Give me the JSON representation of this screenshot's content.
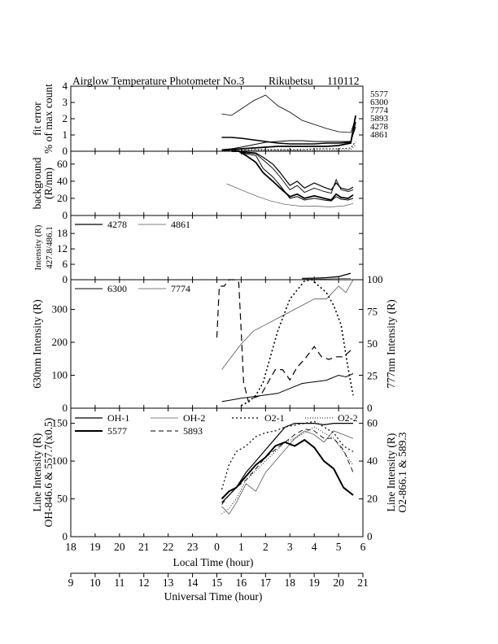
{
  "title": {
    "instrument": "Airglow Temperature Photometer No.3",
    "station": "Rikubetsu",
    "date": "110112"
  },
  "chart_data": [
    {
      "type": "line",
      "panel": "fit-error",
      "ylabel": [
        "fit error",
        "% of max count"
      ],
      "ylim": [
        0,
        4
      ],
      "yticks": [
        "0",
        "1",
        "2",
        "3",
        "4"
      ],
      "right_labels": [
        "5577",
        "6300",
        "7774",
        "5893",
        "4278",
        "4861"
      ],
      "series": [
        {
          "name": "5577",
          "x": [
            0.2,
            0.6,
            1.0,
            1.5,
            2.0,
            2.5,
            3.0,
            3.5,
            4.0,
            4.5,
            5.0,
            5.5,
            5.7
          ],
          "values": [
            0.05,
            0.1,
            0.15,
            0.2,
            0.25,
            0.3,
            0.3,
            0.3,
            0.3,
            0.3,
            0.35,
            0.5,
            2.2
          ]
        },
        {
          "name": "6300",
          "x": [
            0.2,
            0.6,
            1.0,
            1.5,
            2.0,
            2.5,
            3.0,
            3.5,
            4.0,
            4.5,
            5.0,
            5.5,
            5.7
          ],
          "values": [
            2.3,
            2.2,
            2.6,
            3.1,
            3.45,
            2.8,
            2.4,
            1.9,
            1.65,
            1.4,
            1.2,
            1.15,
            2.0
          ]
        },
        {
          "name": "7774",
          "x": [
            0.2,
            0.6,
            1.0,
            1.5,
            2.0,
            2.5,
            3.0,
            3.5,
            4.0,
            4.5,
            5.0,
            5.5,
            5.7
          ],
          "values": [
            0.85,
            0.85,
            0.8,
            0.7,
            0.6,
            0.5,
            0.45,
            0.45,
            0.45,
            0.5,
            0.5,
            0.55,
            1.8
          ]
        },
        {
          "name": "5893",
          "x": [
            0.2,
            0.6,
            1.0,
            1.5,
            2.0,
            2.5,
            3.0,
            3.5,
            4.0,
            4.5,
            5.0,
            5.5,
            5.7
          ],
          "values": [
            0.1,
            0.15,
            0.25,
            0.4,
            0.55,
            0.6,
            0.65,
            0.65,
            0.6,
            0.6,
            0.6,
            0.6,
            1.5
          ]
        },
        {
          "name": "4278",
          "x": [
            0.2,
            0.6,
            1.0,
            1.5,
            2.0,
            2.5,
            3.0,
            3.5,
            4.0,
            4.5,
            5.0,
            5.5,
            5.7
          ],
          "values": [
            0.05,
            0.05,
            0.05,
            0.1,
            0.1,
            0.1,
            0.1,
            0.1,
            0.15,
            0.15,
            0.15,
            0.2,
            0.6
          ]
        },
        {
          "name": "4861",
          "x": [
            0.2,
            0.6,
            1.0,
            1.5,
            2.0,
            2.5,
            3.0,
            3.5,
            4.0,
            4.5,
            5.0,
            5.5,
            5.7
          ],
          "values": [
            0.05,
            0.05,
            0.05,
            0.05,
            0.05,
            0.05,
            0.05,
            0.05,
            0.05,
            0.05,
            0.05,
            0.1,
            0.4
          ]
        }
      ]
    },
    {
      "type": "line",
      "panel": "background",
      "ylabel": [
        "background",
        "(R/nm)"
      ],
      "ylim": [
        0,
        75
      ],
      "yticks": [
        "0",
        "20",
        "40",
        "60"
      ],
      "series": [
        {
          "x": [
            0.6,
            0.9,
            1.2,
            1.6,
            1.9,
            2.3,
            2.6,
            3.0,
            3.3,
            3.6,
            4.0,
            4.4,
            4.7,
            4.9,
            5.1,
            5.4,
            5.6
          ],
          "values": [
            75,
            75,
            72,
            70,
            55,
            45,
            35,
            20,
            22,
            18,
            20,
            18,
            17,
            22,
            19,
            18,
            20
          ]
        },
        {
          "x": [
            0.6,
            0.9,
            1.2,
            1.6,
            1.9,
            2.3,
            2.6,
            3.0,
            3.3,
            3.6,
            4.0,
            4.4,
            4.7,
            4.9,
            5.1,
            5.4,
            5.6
          ],
          "values": [
            75,
            75,
            70,
            62,
            50,
            40,
            32,
            22,
            25,
            20,
            23,
            20,
            18,
            25,
            21,
            20,
            24
          ]
        },
        {
          "x": [
            0.6,
            0.9,
            1.2,
            1.6,
            1.9,
            2.3,
            2.6,
            3.0,
            3.3,
            3.6,
            4.0,
            4.4,
            4.7,
            4.9,
            5.1,
            5.4,
            5.6
          ],
          "values": [
            75,
            75,
            73,
            72,
            65,
            55,
            45,
            30,
            35,
            27,
            32,
            28,
            26,
            42,
            30,
            28,
            30
          ]
        },
        {
          "x": [
            0.6,
            0.9,
            1.2,
            1.6,
            1.9,
            2.3,
            2.6,
            3.0,
            3.3,
            3.6,
            4.0,
            4.4,
            4.7,
            4.9,
            5.1,
            5.4,
            5.6
          ],
          "values": [
            75,
            75,
            74,
            73,
            68,
            60,
            50,
            35,
            40,
            32,
            38,
            33,
            30,
            38,
            32,
            30,
            33
          ]
        },
        {
          "x": [
            0.4,
            1.0,
            1.6,
            2.2,
            2.8,
            3.4,
            4.0,
            4.6,
            5.2,
            5.6
          ],
          "values": [
            37,
            30,
            23,
            17,
            13,
            11,
            11,
            10,
            11,
            14
          ]
        }
      ]
    },
    {
      "type": "line",
      "panel": "blue-lines",
      "ylabel": [
        "Intensity (R)",
        "427.8/486.1"
      ],
      "ylim": [
        0,
        25
      ],
      "yticks": [
        "0",
        "6",
        "12",
        "18"
      ],
      "legend": [
        "4278",
        "4861"
      ],
      "series": [
        {
          "name": "4278",
          "x": [
            3.5,
            4.0,
            4.5,
            5.0,
            5.5
          ],
          "values": [
            0.5,
            0.6,
            0.8,
            1.2,
            2.5
          ]
        },
        {
          "name": "4861",
          "x": [
            3.5,
            4.0,
            4.5,
            5.0,
            5.5
          ],
          "values": [
            0.3,
            0.3,
            0.3,
            0.4,
            0.5
          ]
        }
      ]
    },
    {
      "type": "line",
      "panel": "red-lines",
      "ylabel": "630nm Intensity (R)",
      "ylabel_right": "777nm Intensity (R)",
      "ylim": [
        0,
        390
      ],
      "yticks": [
        "0",
        "100",
        "200",
        "300"
      ],
      "ylim_right": [
        0,
        100
      ],
      "yticks_right": [
        "0",
        "25",
        "50",
        "75",
        "100"
      ],
      "legend": [
        "6300",
        "7774"
      ],
      "series": [
        {
          "name": "6300",
          "x": [
            0.2,
            0.6,
            1.0,
            1.5,
            2.0,
            2.5,
            3.0,
            3.5,
            4.0,
            4.5,
            5.0,
            5.3,
            5.6
          ],
          "values": [
            20,
            25,
            30,
            35,
            40,
            45,
            60,
            75,
            80,
            85,
            100,
            95,
            105
          ]
        },
        {
          "name": "7774",
          "x": [
            0.2,
            0.6,
            1.0,
            1.5,
            2.0,
            2.5,
            3.0,
            3.5,
            4.0,
            4.5,
            5.0,
            5.3,
            5.6
          ],
          "values": [
            30,
            40,
            50,
            60,
            65,
            70,
            75,
            80,
            85,
            85,
            95,
            90,
            100
          ]
        },
        {
          "name": "dashed",
          "x": [
            0.0,
            0.1,
            0.3,
            0.5,
            0.7,
            0.9,
            1.0,
            1.1,
            1.3,
            1.5,
            1.8,
            2.1,
            2.4,
            2.7,
            3.0,
            3.3,
            3.6,
            4.0,
            4.3,
            4.6,
            4.9,
            5.2,
            5.5
          ],
          "values": [
            55,
            95,
            95,
            100,
            100,
            98,
            60,
            20,
            5,
            8,
            10,
            20,
            30,
            30,
            22,
            32,
            38,
            48,
            40,
            38,
            40,
            40,
            45
          ]
        },
        {
          "name": "dotted",
          "x": [
            1.0,
            1.3,
            1.6,
            1.9,
            2.2,
            2.5,
            2.8,
            3.0,
            3.3,
            3.6,
            3.9,
            4.2,
            4.5,
            4.8,
            5.1,
            5.4,
            5.6
          ],
          "values": [
            2,
            5,
            10,
            20,
            40,
            60,
            75,
            85,
            92,
            99,
            100,
            95,
            90,
            80,
            65,
            30,
            10
          ]
        }
      ]
    },
    {
      "type": "line",
      "panel": "line-intensity",
      "ylabel": [
        "Line Intensity (R)",
        "OH-846.6 & 557.7(x0.5)"
      ],
      "ylabel_right": [
        "Line Intensity (R)",
        "O2-866.1 & 589.3"
      ],
      "ylim": [
        0,
        170
      ],
      "yticks": [
        "0",
        "50",
        "100",
        "150"
      ],
      "ylim_right": [
        0,
        68
      ],
      "yticks_right": [
        "0",
        "20",
        "40",
        "60"
      ],
      "legend": [
        "OH-1",
        "OH-2",
        "O2-1",
        "O2-2",
        "5577",
        "5893"
      ],
      "series": [
        {
          "name": "OH-1",
          "x": [
            0.2,
            0.5,
            0.8,
            1.2,
            1.6,
            2.0,
            2.4,
            2.8,
            3.2,
            3.6,
            4.0,
            4.4,
            4.8,
            5.2,
            5.6
          ],
          "values": [
            45,
            55,
            65,
            85,
            100,
            115,
            130,
            145,
            150,
            150,
            150,
            148,
            150,
            150,
            150
          ]
        },
        {
          "name": "OH-2",
          "x": [
            0.2,
            0.5,
            0.8,
            1.2,
            1.6,
            2.0,
            2.4,
            2.8,
            3.2,
            3.6,
            4.0,
            4.4,
            4.8,
            5.2,
            5.6
          ],
          "values": [
            40,
            30,
            45,
            70,
            60,
            85,
            100,
            115,
            130,
            140,
            135,
            125,
            140,
            135,
            130
          ]
        },
        {
          "name": "O2-1",
          "x": [
            0.2,
            0.5,
            0.8,
            1.2,
            1.6,
            2.0,
            2.4,
            2.8,
            3.2,
            3.6,
            4.0,
            4.4,
            4.8,
            5.2,
            5.6
          ],
          "values": [
            25,
            38,
            45,
            48,
            53,
            55,
            56,
            58,
            59,
            60,
            61,
            58,
            55,
            48,
            45
          ]
        },
        {
          "name": "O2-2",
          "x": [
            0.2,
            0.5,
            0.8,
            1.2,
            1.6,
            2.0,
            2.4,
            2.8,
            3.2,
            3.6,
            4.0,
            4.4,
            4.8,
            5.2,
            5.6
          ],
          "values": [
            12,
            15,
            20,
            30,
            35,
            40,
            45,
            50,
            52,
            55,
            58,
            55,
            52,
            45,
            38
          ]
        },
        {
          "name": "5577",
          "x": [
            0.2,
            0.5,
            0.8,
            1.2,
            1.6,
            2.0,
            2.4,
            2.8,
            3.2,
            3.6,
            4.0,
            4.4,
            4.8,
            5.2,
            5.6
          ],
          "values": [
            50,
            60,
            65,
            80,
            95,
            105,
            120,
            125,
            120,
            128,
            118,
            100,
            90,
            65,
            55
          ]
        },
        {
          "name": "5893",
          "x": [
            0.2,
            0.5,
            0.8,
            1.2,
            1.6,
            2.0,
            2.4,
            2.8,
            3.2,
            3.6,
            4.0,
            4.4,
            4.8,
            5.2,
            5.6
          ],
          "values": [
            17,
            22,
            26,
            30,
            36,
            42,
            46,
            50,
            54,
            57,
            56,
            52,
            52,
            46,
            34
          ]
        }
      ]
    }
  ],
  "xaxis": {
    "local": {
      "label": "Local Time (hour)",
      "ticks": [
        "18",
        "19",
        "20",
        "21",
        "22",
        "23",
        "0",
        "1",
        "2",
        "3",
        "4",
        "5",
        "6"
      ]
    },
    "ut": {
      "label": "Universal Time (hour)",
      "ticks": [
        "9",
        "10",
        "11",
        "12",
        "13",
        "14",
        "15",
        "16",
        "17",
        "18",
        "19",
        "20",
        "21"
      ]
    }
  }
}
